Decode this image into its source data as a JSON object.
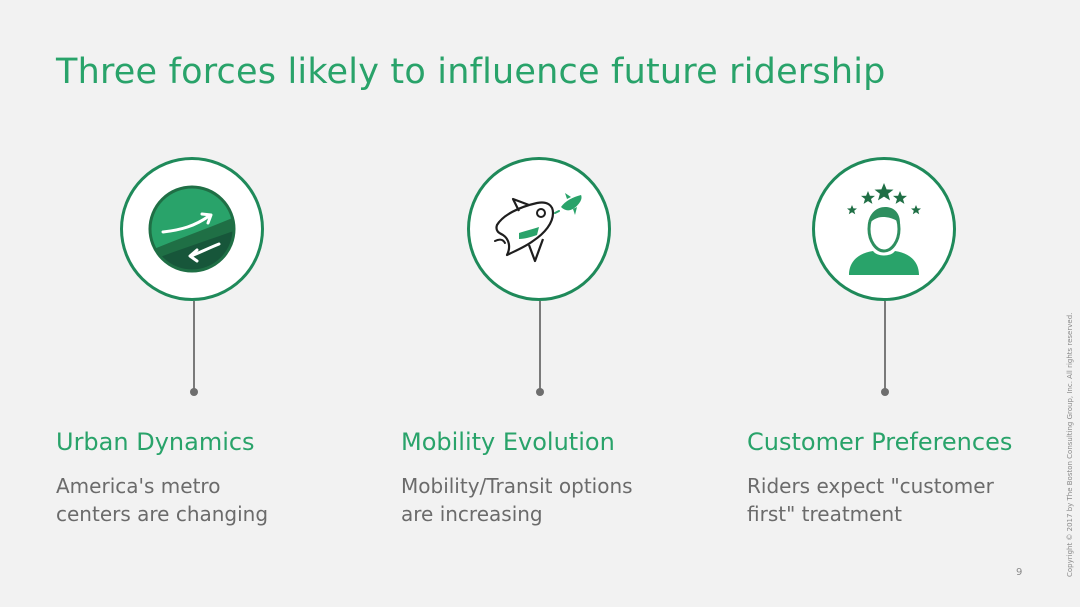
{
  "slide": {
    "title": "Three forces likely to influence future ridership",
    "page_number": "9",
    "copyright": "Copyright © 2017 by The Boston Consulting Group, Inc. All rights reserved."
  },
  "colors": {
    "accent": "#29a36a",
    "dark_green": "#1f6f45",
    "text_gray": "#6b6b6b",
    "background": "#f2f2f2"
  },
  "forces": [
    {
      "icon": "globe-arrows-icon",
      "title": "Urban Dynamics",
      "desc_line1": "America's metro",
      "desc_line2": "centers are changing"
    },
    {
      "icon": "rocket-icon",
      "title": "Mobility Evolution",
      "desc_line1": "Mobility/Transit options",
      "desc_line2": "are increasing"
    },
    {
      "icon": "person-stars-icon",
      "title": "Customer Preferences",
      "desc_line1": "Riders expect \"customer",
      "desc_line2": "first\" treatment"
    }
  ]
}
